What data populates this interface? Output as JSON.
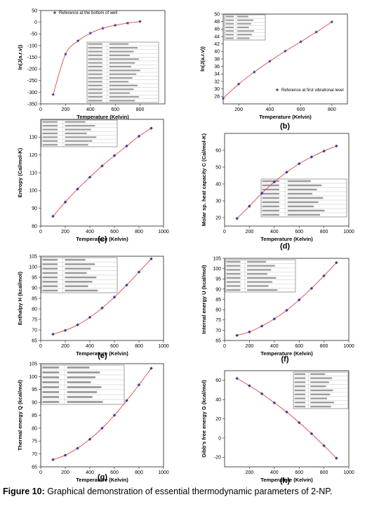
{
  "figure": {
    "caption_label": "Figure 10:",
    "caption_text": " Graphical demonstration of essential thermodynamic parameters of 2-NP."
  },
  "chart_data": [
    {
      "panel": "(a)",
      "type": "scatter",
      "xlabel": "Temperature (Kelvin)",
      "ylabel": "ln(J(a.r.v))",
      "xlim": [
        0,
        1000
      ],
      "ylim": [
        -350,
        50
      ],
      "xticks": [
        0,
        200,
        400,
        600,
        800
      ],
      "yticks": [
        50,
        0,
        -50,
        -100,
        -150,
        -200,
        -250,
        -300,
        -350
      ],
      "legend": {
        "text": "Reference at the bottom of well",
        "position": "top"
      },
      "x": [
        100,
        200,
        300,
        400,
        500,
        600,
        700,
        800
      ],
      "y": [
        -310,
        -137,
        -80,
        -47,
        -26,
        -13,
        -4,
        3
      ]
    },
    {
      "panel": "(b)",
      "type": "scatter",
      "xlabel": "Temperature (Kelvin)",
      "ylabel": "ln(J(a.r.v))",
      "xlim": [
        100,
        900
      ],
      "ylim": [
        26,
        50
      ],
      "xticks": [
        200,
        400,
        600,
        800
      ],
      "yticks": [
        28,
        30,
        32,
        34,
        36,
        38,
        40,
        42,
        44,
        46,
        48,
        50
      ],
      "legend": {
        "text": "Reference at first vibrational level",
        "position": "bottom-right"
      },
      "x": [
        100,
        200,
        300,
        400,
        500,
        600,
        700,
        800
      ],
      "y": [
        27.5,
        31.3,
        34.5,
        37.4,
        40.1,
        42.6,
        45.2,
        47.9
      ]
    },
    {
      "panel": "(c)",
      "type": "scatter",
      "xlabel": "Temperature (Kelvin)",
      "ylabel": "Entropy (Cal/mol-K)",
      "xlim": [
        0,
        1000
      ],
      "ylim": [
        80,
        140
      ],
      "xticks": [
        0,
        200,
        400,
        600,
        800,
        1000
      ],
      "yticks": [
        80,
        90,
        100,
        110,
        120,
        130
      ],
      "x": [
        100,
        200,
        300,
        400,
        500,
        600,
        700,
        800,
        900
      ],
      "y": [
        85.5,
        93.5,
        100.8,
        107.5,
        113.8,
        119.6,
        125,
        130.5,
        135
      ]
    },
    {
      "panel": "(d)",
      "type": "scatter",
      "xlabel": "Temperature (Kelvin)",
      "ylabel": "Molar sp. heat capacity C (Cal/mol-K)",
      "xlim": [
        0,
        1000
      ],
      "ylim": [
        15,
        70
      ],
      "xticks": [
        0,
        200,
        400,
        600,
        800,
        1000
      ],
      "yticks": [
        20,
        30,
        40,
        50,
        60
      ],
      "x": [
        100,
        200,
        300,
        400,
        500,
        600,
        700,
        800,
        900
      ],
      "y": [
        19.5,
        26.8,
        34.5,
        41.2,
        47,
        52,
        56,
        59.5,
        62.5
      ]
    },
    {
      "panel": "(e)",
      "type": "scatter",
      "xlabel": "Temperature (Kelvin)",
      "ylabel": "Enthalpy H (kcal/mol)",
      "xlim": [
        0,
        1000
      ],
      "ylim": [
        65,
        105
      ],
      "xticks": [
        0,
        200,
        400,
        600,
        800,
        1000
      ],
      "yticks": [
        65,
        70,
        75,
        80,
        85,
        90,
        95,
        100,
        105
      ],
      "x": [
        100,
        200,
        300,
        400,
        500,
        600,
        700,
        800,
        900
      ],
      "y": [
        68,
        69.8,
        72.4,
        76,
        80.4,
        85.6,
        91.3,
        97.5,
        103.8
      ]
    },
    {
      "panel": "(f)",
      "type": "scatter",
      "xlabel": "Temperature (Kelvin)",
      "ylabel": "Internal energy U (kcal/mol)",
      "xlim": [
        0,
        1000
      ],
      "ylim": [
        65,
        105
      ],
      "xticks": [
        0,
        200,
        400,
        600,
        800,
        1000
      ],
      "yticks": [
        65,
        70,
        75,
        80,
        85,
        90,
        95,
        100,
        105
      ],
      "x": [
        100,
        200,
        300,
        400,
        500,
        600,
        700,
        800,
        900
      ],
      "y": [
        67.5,
        69.2,
        72,
        75.5,
        79.7,
        84.8,
        90.4,
        96.5,
        102.9
      ]
    },
    {
      "panel": "(g)",
      "type": "scatter",
      "xlabel": "Temperature (Kelvin)",
      "ylabel": "Thermal energy Q (kcal/mol)",
      "xlim": [
        0,
        1000
      ],
      "ylim": [
        65,
        105
      ],
      "xticks": [
        0,
        200,
        400,
        600,
        800,
        1000
      ],
      "yticks": [
        65,
        70,
        75,
        80,
        85,
        90,
        95,
        100,
        105
      ],
      "x": [
        100,
        200,
        300,
        400,
        500,
        600,
        700,
        800,
        900
      ],
      "y": [
        67.8,
        69.5,
        72.2,
        75.7,
        80,
        85,
        90.7,
        96.8,
        103.2
      ]
    },
    {
      "panel": "(h)",
      "type": "scatter",
      "xlabel": "Temperature (Kelvin)",
      "ylabel": "Gibb's free energy G (kcal/mol)",
      "xlim": [
        0,
        1000
      ],
      "ylim": [
        -30,
        70
      ],
      "xticks": [
        200,
        400,
        600,
        800,
        1000
      ],
      "yticks": [
        60,
        40,
        20,
        0,
        -20
      ],
      "x": [
        100,
        200,
        300,
        400,
        500,
        600,
        700,
        800,
        900
      ],
      "y": [
        62,
        54.3,
        46,
        36.6,
        27,
        16,
        4.5,
        -8,
        -21
      ]
    }
  ]
}
